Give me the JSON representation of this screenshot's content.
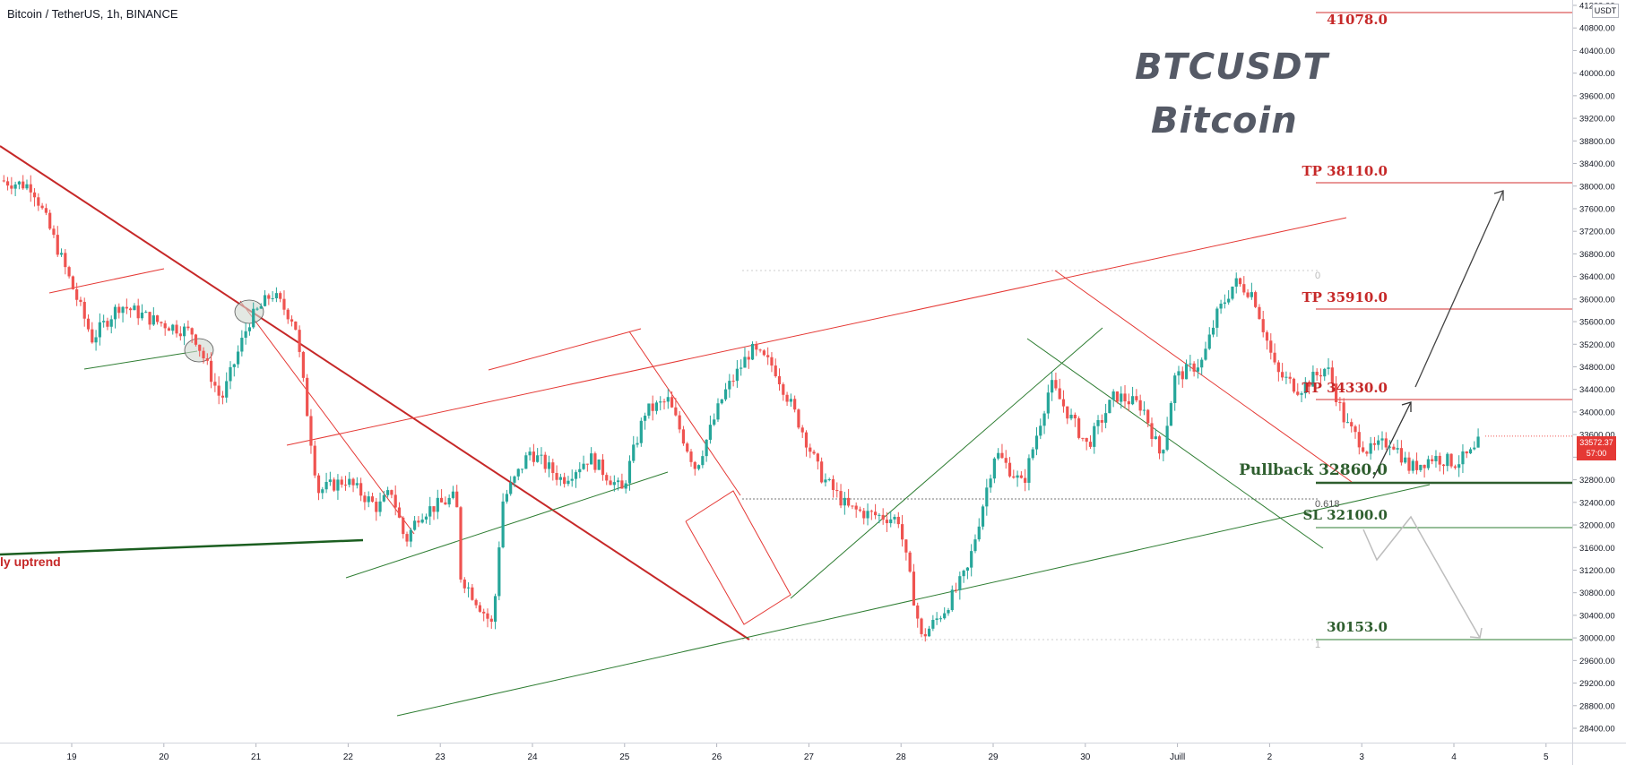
{
  "header": {
    "symbol_title": "Bitcoin / TetherUS, 1h, BINANCE"
  },
  "watermark": {
    "line1": "BTCUSDT",
    "line2": "Bitcoin"
  },
  "price_axis": {
    "unit_label": "USDT",
    "current_price": "33572.37",
    "countdown": "57:00"
  },
  "levels": {
    "l41078": "41078.0",
    "tp38110": "TP 38110.0",
    "tp35910": "TP 35910.0",
    "tp34330": "TP 34330.0",
    "pullback": "Pullback 32860.0",
    "sl": "SL 32100.0",
    "l30153": "30153.0"
  },
  "annotations": {
    "uptrend": "ly uptrend",
    "fib_0": "0",
    "fib_0618": "0.618",
    "fib_1": "1"
  },
  "colors": {
    "up": "#26a69a",
    "down": "#ef5350",
    "trend_red": "#c62828",
    "trend_green": "#2e7d32",
    "level_red": "#d32f2f",
    "level_green": "#2e5e2e"
  },
  "chart_data": {
    "type": "candlestick",
    "symbol": "Bitcoin / TetherUS",
    "interval": "1h",
    "exchange": "BINANCE",
    "x_tick_labels": [
      "19",
      "20",
      "21",
      "22",
      "23",
      "24",
      "25",
      "26",
      "27",
      "28",
      "29",
      "30",
      "Juill",
      "2",
      "3",
      "4",
      "5"
    ],
    "y_tick_labels": [
      "28400.00",
      "28800.00",
      "29200.00",
      "29600.00",
      "30000.00",
      "30400.00",
      "30800.00",
      "31200.00",
      "31600.00",
      "32000.00",
      "32400.00",
      "32800.00",
      "33200.00",
      "33600.00",
      "34000.00",
      "34400.00",
      "34800.00",
      "35200.00",
      "35600.00",
      "36000.00",
      "36400.00",
      "36800.00",
      "37200.00",
      "37600.00",
      "38000.00",
      "38400.00",
      "38800.00",
      "39200.00",
      "39600.00",
      "40000.00",
      "40400.00",
      "40800.00",
      "41200.00"
    ],
    "ylim": [
      28400,
      41200
    ],
    "price_path": [
      [
        0,
        38100
      ],
      [
        0.35,
        38000
      ],
      [
        0.6,
        37000
      ],
      [
        1.0,
        35300
      ],
      [
        1.3,
        35900
      ],
      [
        1.7,
        35600
      ],
      [
        2.1,
        35400
      ],
      [
        2.4,
        34200
      ],
      [
        2.7,
        35600
      ],
      [
        2.95,
        36100
      ],
      [
        3.2,
        35600
      ],
      [
        3.45,
        32600
      ],
      [
        3.75,
        32800
      ],
      [
        4.1,
        32300
      ],
      [
        4.25,
        32600
      ],
      [
        4.4,
        31700
      ],
      [
        4.55,
        32200
      ],
      [
        4.95,
        32500
      ],
      [
        5.0,
        31100
      ],
      [
        5.35,
        30200
      ],
      [
        5.45,
        32400
      ],
      [
        5.75,
        33300
      ],
      [
        6.1,
        32800
      ],
      [
        6.4,
        33200
      ],
      [
        6.75,
        32600
      ],
      [
        7.0,
        34000
      ],
      [
        7.25,
        34200
      ],
      [
        7.55,
        33000
      ],
      [
        7.85,
        34300
      ],
      [
        8.15,
        35100
      ],
      [
        8.4,
        34800
      ],
      [
        8.7,
        33700
      ],
      [
        8.9,
        32900
      ],
      [
        9.2,
        32300
      ],
      [
        9.4,
        32200
      ],
      [
        9.75,
        32100
      ],
      [
        10.0,
        30000
      ],
      [
        10.25,
        30500
      ],
      [
        10.5,
        31200
      ],
      [
        10.8,
        33300
      ],
      [
        11.1,
        32700
      ],
      [
        11.4,
        34500
      ],
      [
        11.8,
        33400
      ],
      [
        12.1,
        34300
      ],
      [
        12.4,
        34100
      ],
      [
        12.6,
        33200
      ],
      [
        12.75,
        34600
      ],
      [
        13.05,
        34900
      ],
      [
        13.2,
        35700
      ],
      [
        13.4,
        36300
      ],
      [
        13.6,
        36100
      ],
      [
        13.85,
        34700
      ],
      [
        14.1,
        34400
      ],
      [
        14.4,
        34800
      ],
      [
        14.6,
        33800
      ],
      [
        14.85,
        33300
      ],
      [
        15.1,
        33500
      ],
      [
        15.3,
        33000
      ],
      [
        15.55,
        33200
      ],
      [
        15.8,
        33100
      ],
      [
        16.0,
        33300
      ],
      [
        16.08,
        33572
      ]
    ],
    "price_levels": [
      {
        "label": "41078.0",
        "value": 41078
      },
      {
        "label": "TP 38110.0",
        "value": 38110
      },
      {
        "label": "TP 35910.0",
        "value": 35910
      },
      {
        "label": "TP 34330.0",
        "value": 34330
      },
      {
        "label": "Pullback 32860.0",
        "value": 32860
      },
      {
        "label": "SL 32100.0",
        "value": 32100
      },
      {
        "label": "30153.0",
        "value": 30153
      }
    ],
    "fibonacci": {
      "levels": [
        "0",
        "0.618",
        "1"
      ],
      "high": 36500,
      "low": 30060
    },
    "trendlines": [
      {
        "color": "red",
        "points": [
          [
            -0.8,
            37900
          ],
          [
            7.95,
            30150
          ]
        ]
      },
      {
        "color": "red",
        "points": [
          [
            3.6,
            33700
          ],
          [
            14.25,
            37400
          ]
        ]
      },
      {
        "color": "green",
        "points": [
          [
            4.7,
            28770
          ],
          [
            14.75,
            32870
          ]
        ]
      },
      {
        "color": "green",
        "points": [
          [
            -0.8,
            31750
          ],
          [
            3.15,
            32040
          ]
        ]
      },
      {
        "color": "red",
        "points": [
          [
            10.75,
            36600
          ],
          [
            13.95,
            32850
          ]
        ]
      },
      {
        "color": "green",
        "points": [
          [
            10.5,
            35000
          ],
          [
            13.95,
            31750
          ]
        ]
      },
      {
        "color": "green",
        "points": [
          [
            7.95,
            30150
          ],
          [
            10.95,
            35350
          ]
        ]
      }
    ],
    "current_price": 33572.37
  }
}
